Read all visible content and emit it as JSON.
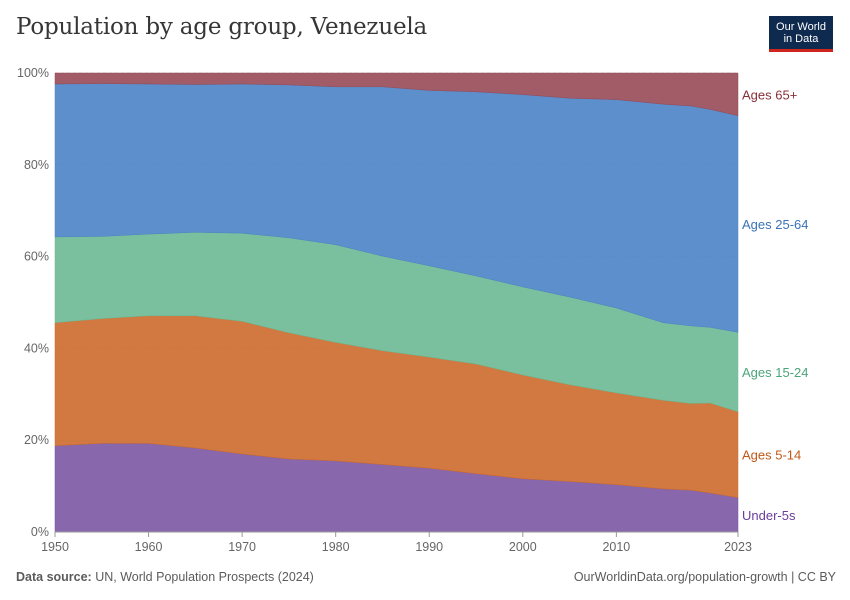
{
  "title": "Population by age group, Venezuela",
  "logo": {
    "line1": "Our World",
    "line2": "in Data"
  },
  "footer": {
    "source_label": "Data source:",
    "source_text": "UN, World Population Prospects (2024)",
    "right_text": "OurWorldinData.org/population-growth | CC BY"
  },
  "chart_data": {
    "type": "area",
    "stacked": true,
    "title": "Population by age group, Venezuela",
    "xlim": [
      1950,
      2023
    ],
    "ylim": [
      0,
      100
    ],
    "x": [
      1950,
      1955,
      1960,
      1965,
      1970,
      1975,
      1980,
      1985,
      1990,
      1995,
      2000,
      2005,
      2010,
      2015,
      2018,
      2020,
      2023
    ],
    "series": [
      {
        "name": "Under-5s",
        "color": "#7b57a4",
        "values": [
          18.8,
          19.3,
          19.3,
          18.3,
          17.0,
          15.9,
          15.5,
          14.7,
          13.9,
          12.7,
          11.6,
          11.0,
          10.3,
          9.4,
          9.1,
          8.5,
          7.5
        ]
      },
      {
        "name": "Ages 5-14",
        "color": "#cc6a2c",
        "values": [
          26.8,
          27.2,
          27.8,
          28.8,
          28.9,
          27.5,
          25.8,
          24.8,
          24.2,
          23.9,
          22.6,
          21.1,
          20.0,
          19.3,
          18.9,
          19.6,
          18.7
        ]
      },
      {
        "name": "Ages 15-24",
        "color": "#6bb994",
        "values": [
          18.7,
          17.9,
          17.8,
          18.2,
          19.2,
          20.7,
          21.3,
          20.6,
          19.9,
          19.2,
          19.2,
          19.1,
          18.5,
          16.9,
          16.9,
          16.5,
          17.3
        ]
      },
      {
        "name": "Ages 25-64",
        "color": "#4b83c7",
        "values": [
          33.3,
          33.3,
          32.7,
          32.2,
          32.5,
          33.3,
          34.4,
          36.9,
          38.2,
          40.1,
          41.9,
          43.3,
          45.4,
          47.6,
          47.9,
          47.5,
          47.2
        ]
      },
      {
        "name": "Ages 65+",
        "color": "#974a57",
        "values": [
          2.4,
          2.3,
          2.4,
          2.5,
          2.4,
          2.6,
          3.0,
          3.0,
          3.8,
          4.1,
          4.7,
          5.5,
          5.8,
          6.8,
          7.2,
          7.9,
          9.3
        ]
      }
    ],
    "y_ticks": [
      "0%",
      "20%",
      "40%",
      "60%",
      "80%",
      "100%"
    ],
    "y_tick_values": [
      0,
      20,
      40,
      60,
      80,
      100
    ],
    "x_ticks": [
      "1950",
      "1960",
      "1970",
      "1980",
      "1990",
      "2000",
      "2010",
      "2023"
    ],
    "x_tick_values": [
      1950,
      1960,
      1970,
      1980,
      1990,
      2000,
      2010,
      2023
    ],
    "label_colors": {
      "Under-5s": "#6a3d9a",
      "Ages 5-14": "#c05917",
      "Ages 15-24": "#4aa57a",
      "Ages 25-64": "#3a73b8",
      "Ages 65+": "#883039"
    }
  }
}
